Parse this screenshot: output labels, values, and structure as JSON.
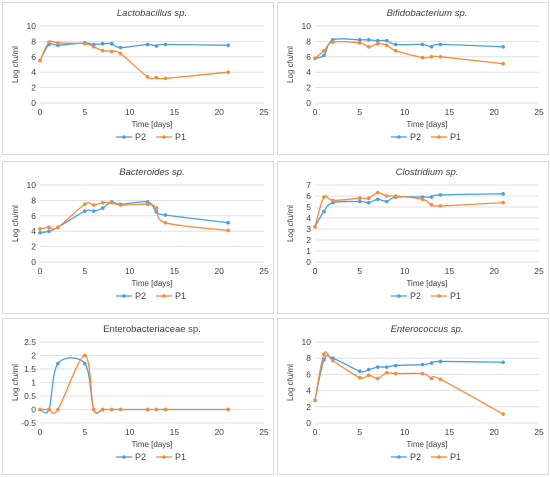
{
  "chart_data": [
    {
      "type": "line",
      "title": "Lactobacillus sp.",
      "title_italic": true,
      "xlabel": "Time [days]",
      "ylabel": "Log cfu/ml",
      "xlim": [
        0,
        25
      ],
      "ylim": [
        0,
        10
      ],
      "xticks": [
        0,
        5,
        10,
        15,
        20,
        25
      ],
      "yticks": [
        0,
        2,
        4,
        6,
        8,
        10
      ],
      "grid": "horizontal",
      "legend": "bottom",
      "series": [
        {
          "name": "P2",
          "color": "#4a9ee2",
          "x": [
            0,
            1,
            2,
            5,
            6,
            7,
            8,
            9,
            12,
            13,
            14,
            21
          ],
          "y": [
            5.5,
            7.6,
            7.5,
            7.8,
            7.6,
            7.7,
            7.7,
            7.2,
            7.6,
            7.4,
            7.6,
            7.5
          ]
        },
        {
          "name": "P1",
          "color": "#f58b3b",
          "x": [
            0,
            1,
            2,
            5,
            6,
            7,
            8,
            9,
            12,
            13,
            14,
            21
          ],
          "y": [
            5.5,
            7.9,
            7.8,
            7.7,
            7.3,
            6.8,
            6.7,
            6.4,
            3.4,
            3.3,
            3.2,
            4.0
          ]
        }
      ]
    },
    {
      "type": "line",
      "title": "Bifidobacterium sp.",
      "title_italic": true,
      "xlabel": "Time [days]",
      "ylabel": "Log cfu/ml",
      "xlim": [
        0,
        25
      ],
      "ylim": [
        0,
        10
      ],
      "xticks": [
        0,
        5,
        10,
        15,
        20,
        25
      ],
      "yticks": [
        0,
        2,
        4,
        6,
        8,
        10
      ],
      "grid": "horizontal",
      "legend": "bottom",
      "series": [
        {
          "name": "P2",
          "color": "#4a9ee2",
          "x": [
            0,
            1,
            2,
            5,
            6,
            7,
            8,
            9,
            12,
            13,
            14,
            21
          ],
          "y": [
            5.8,
            6.2,
            8.2,
            8.2,
            8.2,
            8.1,
            8.1,
            7.6,
            7.6,
            7.3,
            7.6,
            7.3
          ]
        },
        {
          "name": "P1",
          "color": "#f58b3b",
          "x": [
            0,
            1,
            2,
            5,
            6,
            7,
            8,
            9,
            12,
            13,
            14,
            21
          ],
          "y": [
            5.8,
            6.8,
            7.9,
            7.8,
            7.3,
            7.7,
            7.5,
            6.8,
            5.9,
            6.0,
            6.0,
            5.1
          ]
        }
      ]
    },
    {
      "type": "line",
      "title": "Bacteroides sp.",
      "title_italic": true,
      "xlabel": "Time [days]",
      "ylabel": "Log cfu/ml",
      "xlim": [
        0,
        25
      ],
      "ylim": [
        0,
        10
      ],
      "xticks": [
        0,
        5,
        10,
        15,
        20,
        25
      ],
      "yticks": [
        0,
        2,
        4,
        6,
        8,
        10
      ],
      "grid": "horizontal",
      "legend": "bottom",
      "series": [
        {
          "name": "P2",
          "color": "#4a9ee2",
          "x": [
            0,
            1,
            2,
            5,
            6,
            7,
            8,
            9,
            12,
            13,
            14,
            21
          ],
          "y": [
            3.8,
            4.0,
            4.5,
            6.6,
            6.6,
            7.0,
            7.8,
            7.5,
            7.8,
            6.5,
            6.1,
            5.1
          ]
        },
        {
          "name": "P1",
          "color": "#f58b3b",
          "x": [
            0,
            1,
            2,
            5,
            6,
            7,
            8,
            9,
            12,
            13,
            14,
            21
          ],
          "y": [
            4.3,
            4.5,
            4.5,
            7.5,
            7.4,
            7.7,
            7.7,
            7.4,
            7.5,
            7.0,
            5.1,
            4.1
          ]
        }
      ]
    },
    {
      "type": "line",
      "title": "Clostridium sp.",
      "title_italic": true,
      "xlabel": "Time [days]",
      "ylabel": "Log cfu/ml",
      "xlim": [
        0,
        25
      ],
      "ylim": [
        0,
        7
      ],
      "xticks": [
        0,
        5,
        10,
        15,
        20,
        25
      ],
      "yticks": [
        0,
        1,
        2,
        3,
        4,
        5,
        6,
        7
      ],
      "grid": "horizontal",
      "legend": "bottom",
      "series": [
        {
          "name": "P2",
          "color": "#4a9ee2",
          "x": [
            0,
            1,
            2,
            5,
            6,
            7,
            8,
            9,
            12,
            13,
            14,
            21
          ],
          "y": [
            3.2,
            4.6,
            5.4,
            5.5,
            5.4,
            5.7,
            5.5,
            5.9,
            5.9,
            5.9,
            6.1,
            6.2
          ]
        },
        {
          "name": "P1",
          "color": "#f58b3b",
          "x": [
            0,
            1,
            2,
            5,
            6,
            7,
            8,
            9,
            12,
            13,
            14,
            21
          ],
          "y": [
            3.2,
            5.9,
            5.6,
            5.8,
            5.8,
            6.3,
            6.0,
            6.0,
            5.7,
            5.2,
            5.1,
            5.4
          ]
        }
      ]
    },
    {
      "type": "line",
      "title": "Enterobacteriaceae sp.",
      "title_italic": false,
      "xlabel": "Time [days]",
      "ylabel": "Log cfu/ml",
      "xlim": [
        0,
        25
      ],
      "ylim": [
        -0.5,
        2.5
      ],
      "xticks": [
        0,
        5,
        10,
        15,
        20,
        25
      ],
      "yticks": [
        -0.5,
        0,
        0.5,
        1,
        1.5,
        2,
        2.5
      ],
      "grid": "horizontal",
      "legend": "bottom",
      "series": [
        {
          "name": "P2",
          "color": "#4a9ee2",
          "x": [
            0,
            1,
            2,
            5,
            6,
            7,
            8,
            9,
            12,
            13,
            14,
            21
          ],
          "y": [
            0,
            0,
            1.7,
            1.7,
            0,
            0,
            0,
            0,
            0,
            0,
            0,
            0
          ]
        },
        {
          "name": "P1",
          "color": "#f58b3b",
          "x": [
            0,
            1,
            2,
            5,
            6,
            7,
            8,
            9,
            12,
            13,
            14,
            21
          ],
          "y": [
            0,
            0,
            0,
            2.0,
            0,
            0,
            0,
            0,
            0,
            0,
            0,
            0
          ]
        }
      ]
    },
    {
      "type": "line",
      "title": "Enterococcus sp.",
      "title_italic": true,
      "xlabel": "Time [days]",
      "ylabel": "Log cfu/ml",
      "xlim": [
        0,
        25
      ],
      "ylim": [
        0,
        10
      ],
      "xticks": [
        0,
        5,
        10,
        15,
        20,
        25
      ],
      "yticks": [
        0,
        2,
        4,
        6,
        8,
        10
      ],
      "grid": "horizontal",
      "legend": "bottom",
      "series": [
        {
          "name": "P2",
          "color": "#4a9ee2",
          "x": [
            0,
            1,
            2,
            5,
            6,
            7,
            8,
            9,
            12,
            13,
            14,
            21
          ],
          "y": [
            2.8,
            7.8,
            8.0,
            6.4,
            6.6,
            6.9,
            6.9,
            7.1,
            7.2,
            7.4,
            7.6,
            7.5
          ]
        },
        {
          "name": "P1",
          "color": "#f58b3b",
          "x": [
            0,
            1,
            2,
            5,
            6,
            7,
            8,
            9,
            12,
            13,
            14,
            21
          ],
          "y": [
            2.8,
            8.5,
            7.7,
            5.6,
            5.9,
            5.5,
            6.2,
            6.1,
            6.1,
            5.5,
            5.4,
            1.1
          ]
        }
      ]
    }
  ]
}
